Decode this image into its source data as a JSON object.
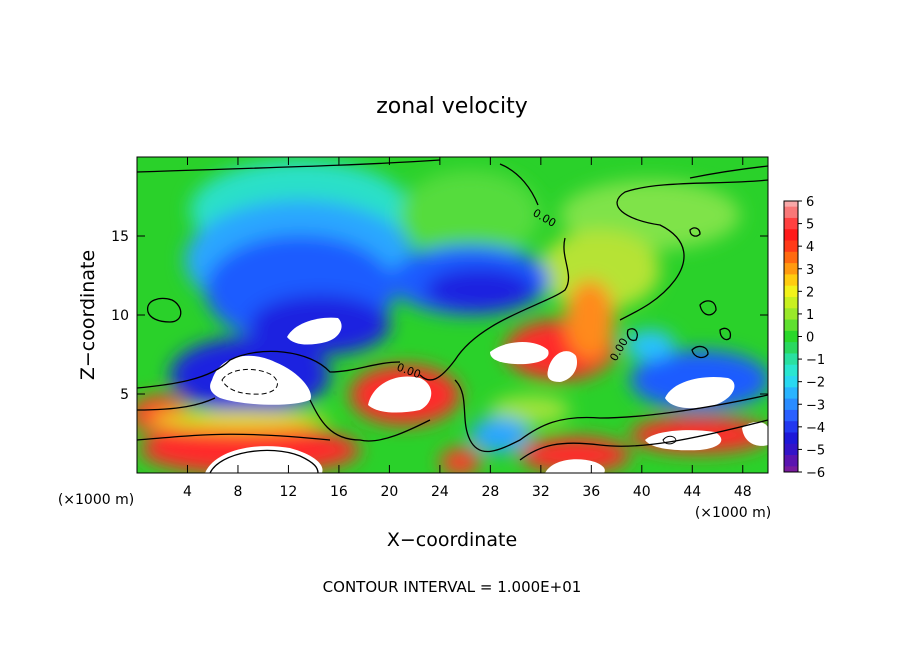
{
  "chart_data": {
    "type": "heatmap",
    "title": "zonal velocity",
    "xlabel": "X−coordinate",
    "ylabel": "Z−coordinate",
    "x_units_left": "(×1000 m)",
    "x_units_right": "(×1000 m)",
    "xlim": [
      0,
      50
    ],
    "ylim": [
      0,
      20
    ],
    "xticks": [
      4,
      8,
      12,
      16,
      20,
      24,
      28,
      32,
      36,
      40,
      44,
      48
    ],
    "yticks": [
      5,
      10,
      15
    ],
    "colorbar": {
      "ticks": [
        "6",
        "5",
        "4",
        "3",
        "2",
        "1",
        "0",
        "−1",
        "−2",
        "−3",
        "−4",
        "−5",
        "−6"
      ],
      "range": [
        -6,
        6
      ]
    },
    "contour_labels": [
      "0.00",
      "0.00",
      "0.00"
    ],
    "footer": "CONTOUR INTERVAL = 1.000E+01"
  }
}
